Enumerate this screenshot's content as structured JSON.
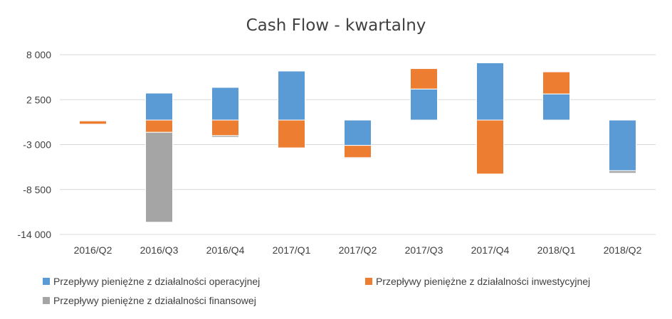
{
  "chart_data": {
    "type": "bar",
    "stacked": true,
    "title": "Cash Flow - kwartalny",
    "xlabel": "",
    "ylabel": "",
    "categories": [
      "2016/Q2",
      "2016/Q3",
      "2016/Q4",
      "2017/Q1",
      "2017/Q2",
      "2017/Q3",
      "2017/Q4",
      "2018/Q1",
      "2018/Q2"
    ],
    "ylim": [
      -14000,
      8000
    ],
    "yticks": [
      8000,
      2500,
      -3000,
      -8500,
      -14000
    ],
    "ytick_labels": [
      "8 000",
      "2 500",
      "-3 000",
      "-8 500",
      "-14 000"
    ],
    "grid": true,
    "legend_position": "bottom",
    "series": [
      {
        "name": "Przepływy pieniężne z działalności operacyjnej",
        "color": "#5B9BD5",
        "values": [
          -100,
          3300,
          4000,
          6000,
          -3100,
          3800,
          7000,
          3200,
          -6200
        ]
      },
      {
        "name": "Przepływy pieniężne z działalności inwestycyjnej",
        "color": "#ED7D31",
        "values": [
          -400,
          -1500,
          -1900,
          -3400,
          -1500,
          2500,
          -6600,
          2700,
          0
        ]
      },
      {
        "name": "Przepływy pieniężne z działalności finansowej",
        "color": "#A5A5A5",
        "values": [
          0,
          -11000,
          -200,
          0,
          -100,
          0,
          0,
          0,
          -300
        ]
      }
    ]
  }
}
